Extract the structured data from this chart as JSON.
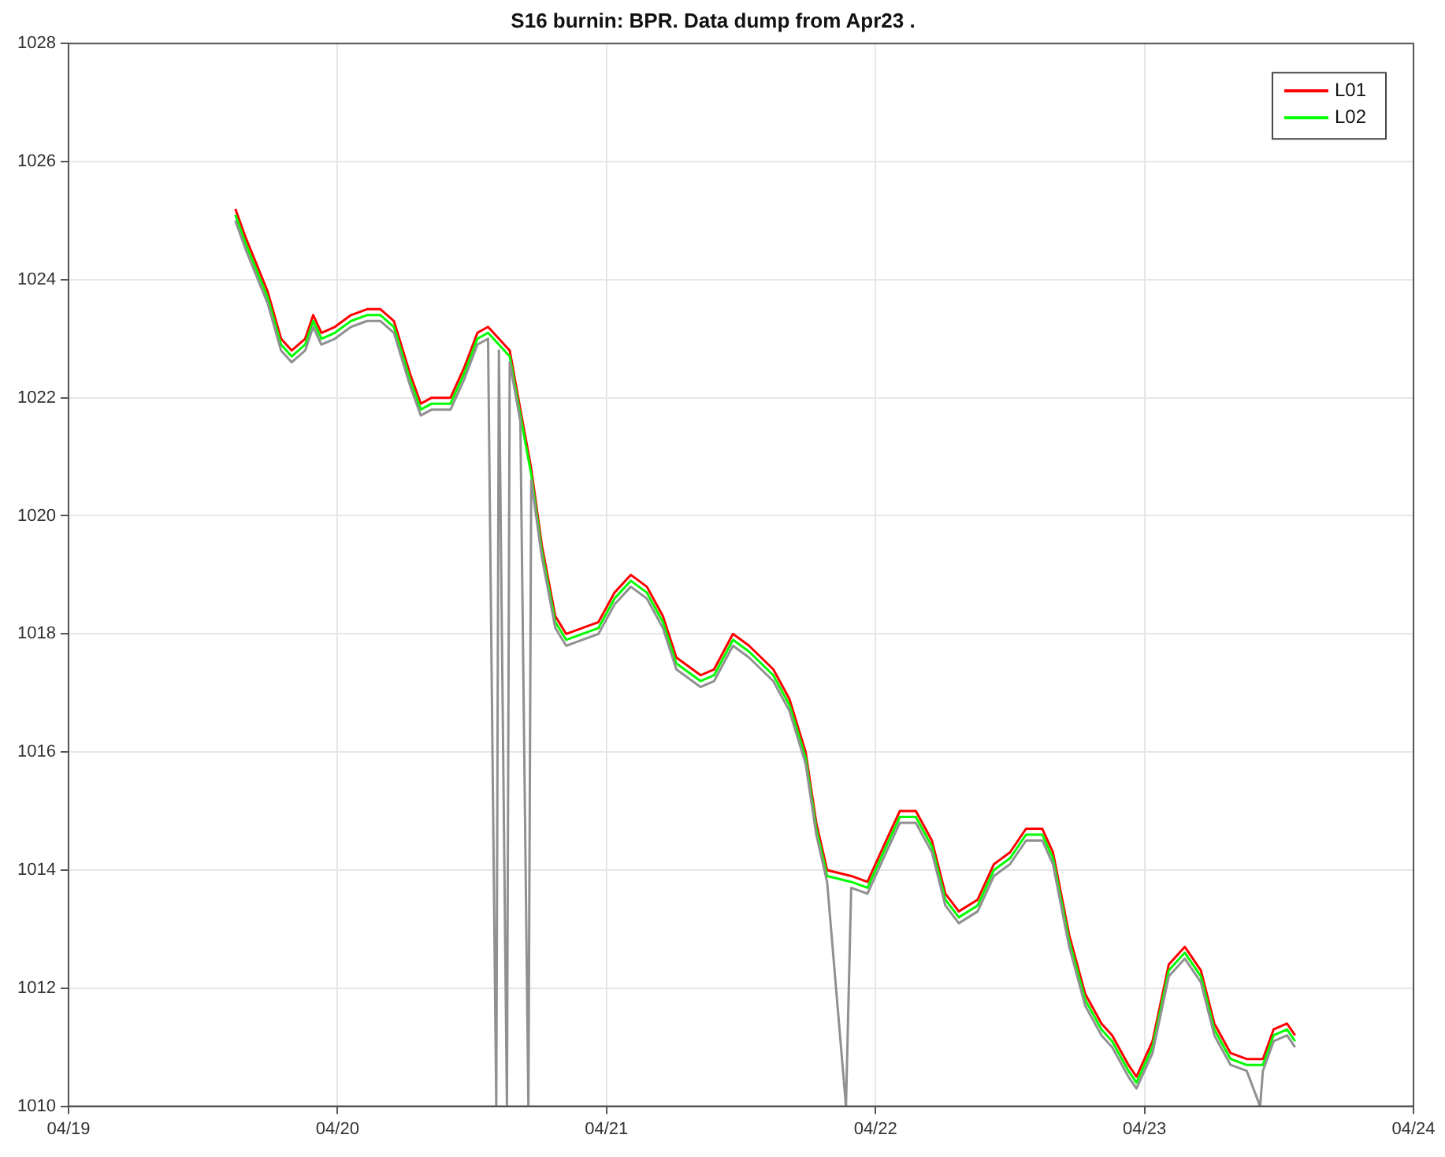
{
  "chart_data": {
    "type": "line",
    "title": "S16 burnin: BPR. Data dump from Apr23 .",
    "xlim": [
      "--04-19",
      "--04-24"
    ],
    "xticks": [
      {
        "value": "--04-19",
        "label": "04/19"
      },
      {
        "value": "--04-20",
        "label": "04/20"
      },
      {
        "value": "--04-21",
        "label": "04/21"
      },
      {
        "value": "--04-22",
        "label": "04/22"
      },
      {
        "value": "--04-23",
        "label": "04/23"
      },
      {
        "value": "--04-24",
        "label": "04/24"
      }
    ],
    "ylim": [
      1010,
      1028
    ],
    "yticks": [
      1010,
      1012,
      1014,
      1016,
      1018,
      1020,
      1022,
      1024,
      1026,
      1028
    ],
    "grid": true,
    "legend": "top right",
    "marker": "none",
    "line_style": "solid",
    "x": [
      "--04-19T14:53",
      "--04-19T15:50",
      "--04-19T17:46",
      "--04-19T18:58",
      "--04-19T19:55",
      "--04-19T21:07",
      "--04-19T21:50",
      "--04-19T22:34",
      "--04-19T23:46",
      "--04-20T01:12",
      "--04-20T02:38",
      "--04-20T03:50",
      "--04-20T05:02",
      "--04-20T06:29",
      "--04-20T07:26",
      "--04-20T08:24",
      "--04-20T10:05",
      "--04-20T11:17",
      "--04-20T12:29",
      "--04-20T13:26",
      "--04-20T14:24",
      "--04-20T15:22",
      "--04-20T16:19",
      "--04-20T17:17",
      "--04-20T18:14",
      "--04-20T19:26",
      "--04-20T20:24",
      "--04-20T21:50",
      "--04-20T23:17",
      "--04-21T00:43",
      "--04-21T02:10",
      "--04-21T03:36",
      "--04-21T05:02",
      "--04-21T06:14",
      "--04-21T08:24",
      "--04-21T09:36",
      "--04-21T11:17",
      "--04-21T12:43",
      "--04-21T14:53",
      "--04-21T16:19",
      "--04-21T17:46",
      "--04-21T18:43",
      "--04-21T19:41",
      "--04-21T21:50",
      "--04-21T23:17",
      "--04-22T00:43",
      "--04-22T02:10",
      "--04-22T03:36",
      "--04-22T05:02",
      "--04-22T06:14",
      "--04-22T07:26",
      "--04-22T09:07",
      "--04-22T10:34",
      "--04-22T12:00",
      "--04-22T13:26",
      "--04-22T14:53",
      "--04-22T15:50",
      "--04-22T17:17",
      "--04-22T18:43",
      "--04-22T20:10",
      "--04-22T21:07",
      "--04-22T22:34",
      "--04-22T23:17",
      "--04-23T00:43",
      "--04-23T02:10",
      "--04-23T03:36",
      "--04-23T05:02",
      "--04-23T06:14",
      "--04-23T07:41",
      "--04-23T09:07",
      "--04-23T10:34",
      "--04-23T11:31",
      "--04-23T12:43",
      "--04-23T13:26"
    ],
    "series": [
      {
        "name": "L01",
        "color": "#ff0000",
        "values": [
          1025.2,
          1024.7,
          1023.8,
          1023.0,
          1022.8,
          1023.0,
          1023.4,
          1023.1,
          1023.2,
          1023.4,
          1023.5,
          1023.5,
          1023.3,
          1022.4,
          1021.9,
          1022.0,
          1022.0,
          1022.5,
          1023.1,
          1023.2,
          1023.0,
          1022.8,
          1021.8,
          1020.8,
          1019.5,
          1018.3,
          1018.0,
          1018.1,
          1018.2,
          1018.7,
          1019.0,
          1018.8,
          1018.3,
          1017.6,
          1017.3,
          1017.4,
          1018.0,
          1017.8,
          1017.4,
          1016.9,
          1016.0,
          1014.8,
          1014.0,
          1013.9,
          1013.8,
          1014.4,
          1015.0,
          1015.0,
          1014.5,
          1013.6,
          1013.3,
          1013.5,
          1014.1,
          1014.3,
          1014.7,
          1014.7,
          1014.3,
          1012.9,
          1011.9,
          1011.4,
          1011.2,
          1010.7,
          1010.5,
          1011.1,
          1012.4,
          1012.7,
          1012.3,
          1011.4,
          1010.9,
          1010.8,
          1010.8,
          1011.3,
          1011.4,
          1011.2
        ]
      },
      {
        "name": "L02",
        "color": "#00ff00",
        "values": [
          1025.1,
          1024.6,
          1023.7,
          1022.9,
          1022.7,
          1022.9,
          1023.3,
          1023.0,
          1023.1,
          1023.3,
          1023.4,
          1023.4,
          1023.2,
          1022.3,
          1021.8,
          1021.9,
          1021.9,
          1022.4,
          1023.0,
          1023.1,
          1022.9,
          1022.7,
          1021.7,
          1020.7,
          1019.4,
          1018.2,
          1017.9,
          1018.0,
          1018.1,
          1018.6,
          1018.9,
          1018.7,
          1018.2,
          1017.5,
          1017.2,
          1017.3,
          1017.9,
          1017.7,
          1017.3,
          1016.8,
          1015.9,
          1014.7,
          1013.9,
          1013.8,
          1013.7,
          1014.3,
          1014.9,
          1014.9,
          1014.4,
          1013.5,
          1013.2,
          1013.4,
          1014.0,
          1014.2,
          1014.6,
          1014.6,
          1014.2,
          1012.8,
          1011.8,
          1011.3,
          1011.1,
          1010.6,
          1010.4,
          1011.0,
          1012.3,
          1012.6,
          1012.2,
          1011.3,
          1010.8,
          1010.7,
          1010.7,
          1011.2,
          1011.3,
          1011.1
        ]
      },
      {
        "color": "#909090",
        "x": [
          "--04-19T14:53",
          "--04-19T15:50",
          "--04-19T17:46",
          "--04-19T18:58",
          "--04-19T19:55",
          "--04-19T21:07",
          "--04-19T21:50",
          "--04-19T22:34",
          "--04-19T23:46",
          "--04-20T01:12",
          "--04-20T02:38",
          "--04-20T03:50",
          "--04-20T05:02",
          "--04-20T06:29",
          "--04-20T07:26",
          "--04-20T08:24",
          "--04-20T10:05",
          "--04-20T11:17",
          "--04-20T12:29",
          "--04-20T13:26",
          "--04-20T14:10",
          "--04-20T14:24",
          "--04-20T15:07",
          "--04-20T15:22",
          "--04-20T16:19",
          "--04-20T17:02",
          "--04-20T17:17",
          "--04-20T18:14",
          "--04-20T19:26",
          "--04-20T20:24",
          "--04-20T21:50",
          "--04-20T23:17",
          "--04-21T00:43",
          "--04-21T02:10",
          "--04-21T03:36",
          "--04-21T05:02",
          "--04-21T06:14",
          "--04-21T08:24",
          "--04-21T09:36",
          "--04-21T11:17",
          "--04-21T12:43",
          "--04-21T14:53",
          "--04-21T16:19",
          "--04-21T17:46",
          "--04-21T18:43",
          "--04-21T19:41",
          "--04-21T21:22",
          "--04-21T21:50",
          "--04-21T23:17",
          "--04-22T00:43",
          "--04-22T02:10",
          "--04-22T03:36",
          "--04-22T05:02",
          "--04-22T06:14",
          "--04-22T07:26",
          "--04-22T09:07",
          "--04-22T10:34",
          "--04-22T12:00",
          "--04-22T13:26",
          "--04-22T14:53",
          "--04-22T15:50",
          "--04-22T17:17",
          "--04-22T18:43",
          "--04-22T20:10",
          "--04-22T21:07",
          "--04-22T22:34",
          "--04-22T23:17",
          "--04-23T00:43",
          "--04-23T02:10",
          "--04-23T03:36",
          "--04-23T05:02",
          "--04-23T06:14",
          "--04-23T07:41",
          "--04-23T09:07",
          "--04-23T10:19",
          "--04-23T10:34",
          "--04-23T11:31",
          "--04-23T12:43",
          "--04-23T13:26"
        ],
        "values": [
          1025.0,
          1024.5,
          1023.6,
          1022.8,
          1022.6,
          1022.8,
          1023.2,
          1022.9,
          1023.0,
          1023.2,
          1023.3,
          1023.3,
          1023.1,
          1022.2,
          1021.7,
          1021.8,
          1021.8,
          1022.3,
          1022.9,
          1023.0,
          1010.0,
          1022.8,
          1010.0,
          1022.6,
          1021.6,
          1010.0,
          1020.6,
          1019.3,
          1018.1,
          1017.8,
          1017.9,
          1018.0,
          1018.5,
          1018.8,
          1018.6,
          1018.1,
          1017.4,
          1017.1,
          1017.2,
          1017.8,
          1017.6,
          1017.2,
          1016.7,
          1015.8,
          1014.6,
          1013.8,
          1010.0,
          1013.7,
          1013.6,
          1014.2,
          1014.8,
          1014.8,
          1014.3,
          1013.4,
          1013.1,
          1013.3,
          1013.9,
          1014.1,
          1014.5,
          1014.5,
          1014.1,
          1012.7,
          1011.7,
          1011.2,
          1011.0,
          1010.5,
          1010.3,
          1010.9,
          1012.2,
          1012.5,
          1012.1,
          1011.2,
          1010.7,
          1010.6,
          1010.0,
          1010.6,
          1011.1,
          1011.2,
          1011.0
        ]
      }
    ]
  }
}
